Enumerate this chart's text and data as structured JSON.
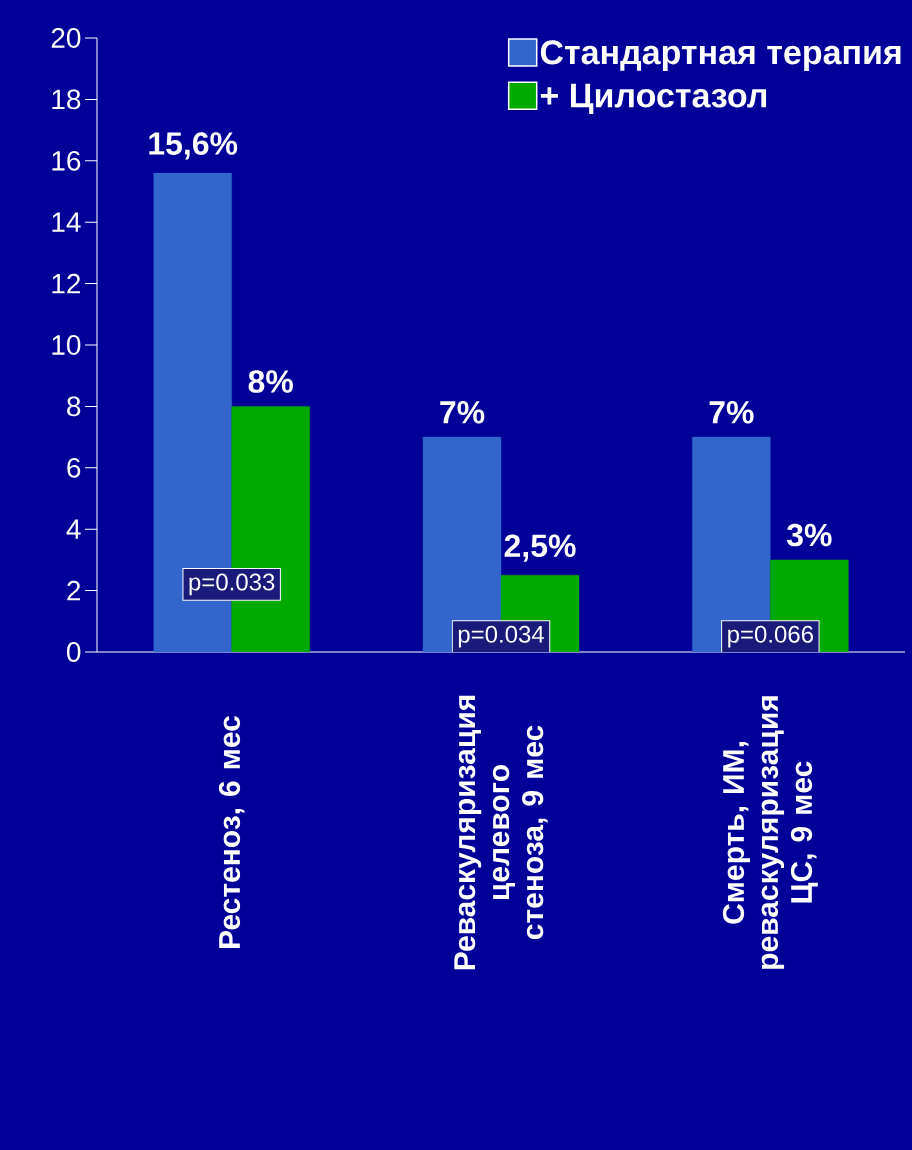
{
  "chart_data": {
    "type": "bar",
    "categories": [
      "Рестеноз, 6 мес",
      "Реваскуляризация целевого стеноза, 9 мес",
      "Смерть, ИМ, реваскуляризация ЦС, 9 мес"
    ],
    "series": [
      {
        "name": "Стандартная терапия",
        "color": "#3366cc",
        "values": [
          15.6,
          7,
          7
        ],
        "value_labels": [
          "15,6%",
          "7%",
          "7%"
        ]
      },
      {
        "name": "+ Цилостазол",
        "color": "#00aa00",
        "values": [
          8,
          2.5,
          3
        ],
        "value_labels": [
          "8%",
          "2,5%",
          "3%"
        ]
      }
    ],
    "ylim": [
      0,
      20
    ],
    "yticks": [
      0,
      2,
      4,
      6,
      8,
      10,
      12,
      14,
      16,
      18,
      20
    ],
    "legend": "top right",
    "annotations": [
      {
        "text": "p=0.033",
        "x": "Рестеноз, 6 мес",
        "y": 2.2
      },
      {
        "text": "p=0.034",
        "x": "Реваскуляризация целевого стеноза, 9 мес",
        "y": 0.5
      },
      {
        "text": "p=0.066",
        "x": "Смерть, ИМ, реваскуляризация ЦС, 9 мес",
        "y": 0.5
      }
    ]
  }
}
